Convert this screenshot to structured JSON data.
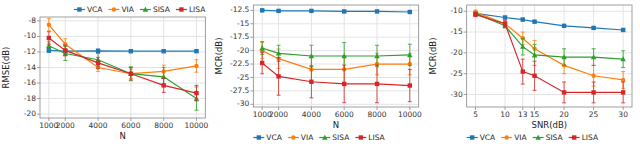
{
  "chart_data": [
    {
      "type": "line",
      "x_label": "N",
      "y_label": "RMSE(dB)",
      "x": [
        1000,
        2000,
        4000,
        6000,
        8000,
        10000
      ],
      "xlim": [
        460,
        10540
      ],
      "xticks": [
        1000,
        2000,
        4000,
        6000,
        8000,
        10000
      ],
      "ylim": [
        -20.5,
        -7.5
      ],
      "yticks": [
        -20,
        -18,
        -16,
        -14,
        -12,
        -10,
        -8
      ],
      "grid": true,
      "legend": "upper right",
      "series": [
        {
          "name": "VCA",
          "color": "#1f77b4",
          "marker": "square",
          "values": [
            -11.8,
            -11.9,
            -11.85,
            -11.9,
            -11.9,
            -11.9
          ],
          "errors": [
            0.25,
            0.2,
            0.2,
            0.15,
            0.15,
            0.15
          ]
        },
        {
          "name": "VIA",
          "color": "#ff7f0e",
          "marker": "circle",
          "values": [
            -8.5,
            -11.0,
            -14.0,
            -14.8,
            -14.5,
            -13.8
          ],
          "errors": [
            0.8,
            0.7,
            0.5,
            0.6,
            0.8,
            0.8
          ]
        },
        {
          "name": "SISA",
          "color": "#2ca02c",
          "marker": "triangle",
          "values": [
            -11.2,
            -12.2,
            -13.0,
            -14.8,
            -15.2,
            -18.0
          ],
          "errors": [
            0.5,
            0.9,
            0.8,
            0.9,
            1.2,
            1.5
          ]
        },
        {
          "name": "LISA",
          "color": "#d62728",
          "marker": "square",
          "values": [
            -10.2,
            -11.8,
            -13.4,
            -14.8,
            -16.3,
            -17.3
          ],
          "errors": [
            0.8,
            0.7,
            0.7,
            0.8,
            0.9,
            1.0
          ]
        }
      ]
    },
    {
      "type": "line",
      "x_label": "N",
      "y_label": "MCR(dB)",
      "x": [
        1000,
        2000,
        4000,
        6000,
        8000,
        10000
      ],
      "xlim": [
        460,
        10540
      ],
      "xticks": [
        1000,
        2000,
        4000,
        6000,
        8000,
        10000
      ],
      "ylim": [
        -30.5,
        -11.5
      ],
      "yticks": [
        -30,
        -27.5,
        -25,
        -22.5,
        -20,
        -17.5,
        -15,
        -12.5
      ],
      "grid": true,
      "legend": "lower left",
      "series": [
        {
          "name": "VCA",
          "color": "#1f77b4",
          "marker": "square",
          "values": [
            -12.5,
            -12.6,
            -12.6,
            -12.7,
            -12.7,
            -12.8
          ],
          "errors": [
            0.2,
            0.15,
            0.15,
            0.15,
            0.15,
            0.15
          ]
        },
        {
          "name": "VIA",
          "color": "#ff7f0e",
          "marker": "circle",
          "values": [
            -20.0,
            -21.5,
            -23.5,
            -23.5,
            -22.5,
            -22.5
          ],
          "errors": [
            1.5,
            1.8,
            2.5,
            2.5,
            2.0,
            2.0
          ]
        },
        {
          "name": "SISA",
          "color": "#2ca02c",
          "marker": "triangle",
          "values": [
            -19.5,
            -20.5,
            -21.0,
            -21.0,
            -21.0,
            -20.8
          ],
          "errors": [
            1.2,
            1.5,
            2.0,
            2.5,
            2.0,
            2.0
          ]
        },
        {
          "name": "LISA",
          "color": "#d62728",
          "marker": "square",
          "values": [
            -22.3,
            -24.8,
            -25.8,
            -26.2,
            -26.2,
            -26.5
          ],
          "errors": [
            2.0,
            3.5,
            3.0,
            3.5,
            3.5,
            3.0
          ]
        }
      ]
    },
    {
      "type": "line",
      "x_label": "SNR(dB)",
      "y_label": "MCR(dB)",
      "x": [
        5,
        10,
        13,
        15,
        20,
        25,
        30
      ],
      "xlim": [
        3.5,
        31.5
      ],
      "xticks": [
        5,
        10,
        13,
        15,
        20,
        25,
        30
      ],
      "ylim": [
        -33,
        -8.5
      ],
      "yticks": [
        -30,
        -25,
        -20,
        -15,
        -10
      ],
      "grid": true,
      "legend": "lower left",
      "series": [
        {
          "name": "VCA",
          "color": "#1f77b4",
          "marker": "square",
          "values": [
            -10.5,
            -11.5,
            -12.0,
            -12.5,
            -13.5,
            -14.0,
            -14.5
          ],
          "errors": [
            0.3,
            0.3,
            0.3,
            0.3,
            0.3,
            0.3,
            0.3
          ]
        },
        {
          "name": "VIA",
          "color": "#ff7f0e",
          "marker": "circle",
          "values": [
            -10.2,
            -13.0,
            -16.5,
            -19.0,
            -23.0,
            -25.5,
            -26.5
          ],
          "errors": [
            0.5,
            0.5,
            1.5,
            2.0,
            2.0,
            2.5,
            2.0
          ]
        },
        {
          "name": "SISA",
          "color": "#2ca02c",
          "marker": "triangle",
          "values": [
            -10.5,
            -13.5,
            -18.5,
            -20.5,
            -21.0,
            -21.0,
            -21.5
          ],
          "errors": [
            0.3,
            0.5,
            2.0,
            2.5,
            2.0,
            2.0,
            2.0
          ]
        },
        {
          "name": "LISA",
          "color": "#d62728",
          "marker": "square",
          "values": [
            -10.8,
            -13.0,
            -24.5,
            -25.5,
            -29.5,
            -29.5,
            -29.5
          ],
          "errors": [
            0.5,
            0.8,
            3.0,
            3.5,
            2.5,
            2.5,
            2.5
          ]
        }
      ]
    }
  ]
}
